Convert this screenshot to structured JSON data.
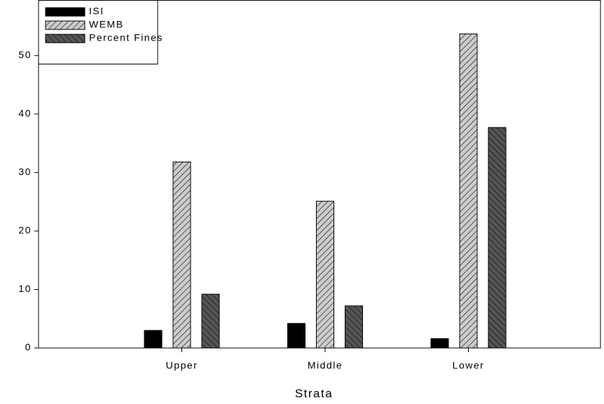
{
  "chart_data": {
    "type": "bar",
    "x_label": "Strata",
    "categories": [
      "Upper",
      "Middle",
      "Lower"
    ],
    "series": [
      {
        "name": "ISI",
        "color": "#000000",
        "values": [
          3.0,
          4.2,
          1.6
        ]
      },
      {
        "name": "WEMB",
        "color": "#cccccc",
        "values": [
          31.8,
          25.1,
          53.7
        ]
      },
      {
        "name": "Percent Fines",
        "color": "#555555",
        "values": [
          9.2,
          7.2,
          37.7
        ]
      }
    ],
    "ylim": [
      0,
      59.5
    ],
    "yticks": [
      0,
      10,
      20,
      30,
      40,
      50
    ],
    "legend": "top-left"
  }
}
